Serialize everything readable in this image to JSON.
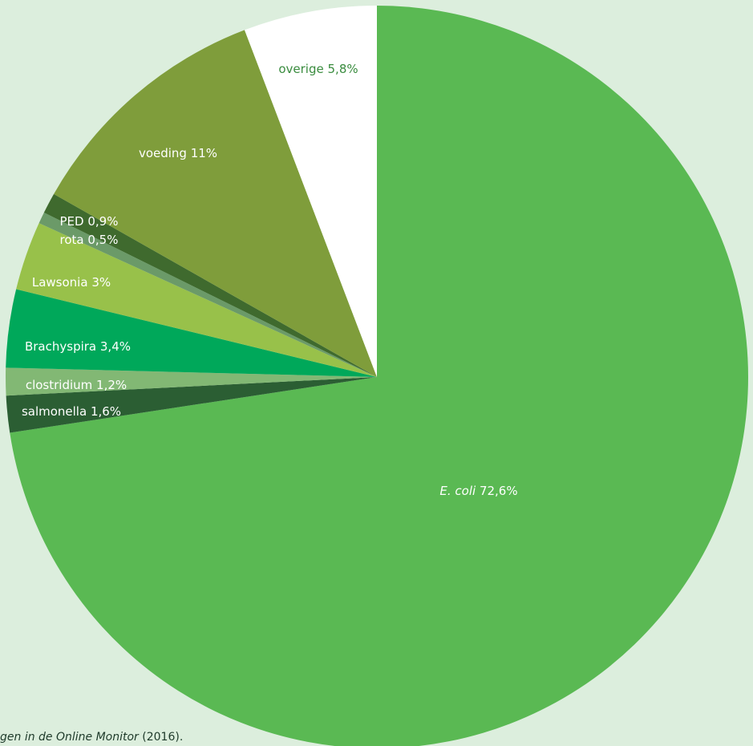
{
  "chart_data": {
    "type": "pie",
    "start": "top, clockwise",
    "slices": [
      {
        "label": "E. coli",
        "value_label": "72,6%",
        "value": 72.6,
        "color": "#5ab953",
        "text_color": "#ffffff",
        "italic": true
      },
      {
        "label": "salmonella",
        "value_label": "1,6%",
        "value": 1.6,
        "color": "#2b5e33",
        "text_color": "#ffffff",
        "italic": false
      },
      {
        "label": "clostridium",
        "value_label": "1,2%",
        "value": 1.2,
        "color": "#82b874",
        "text_color": "#ffffff",
        "italic": false
      },
      {
        "label": "Brachyspira",
        "value_label": "3,4%",
        "value": 3.4,
        "color": "#00a85a",
        "text_color": "#ffffff",
        "italic": false
      },
      {
        "label": "Lawsonia",
        "value_label": "3%",
        "value": 3.0,
        "color": "#98c14a",
        "text_color": "#ffffff",
        "italic": false
      },
      {
        "label": "rota",
        "value_label": "0,5%",
        "value": 0.5,
        "color": "#6b9a68",
        "text_color": "#ffffff",
        "italic": false
      },
      {
        "label": "PED",
        "value_label": "0,9%",
        "value": 0.9,
        "color": "#3f6a2e",
        "text_color": "#ffffff",
        "italic": false
      },
      {
        "label": "voeding",
        "value_label": "11%",
        "value": 11.0,
        "color": "#7f9d3b",
        "text_color": "#ffffff",
        "italic": false
      },
      {
        "label": "overige",
        "value_label": "5,8%",
        "value": 5.8,
        "color": "#ffffff",
        "text_color": "#3a8c3f",
        "italic": false
      }
    ]
  },
  "caption": {
    "italic_text": "gen in de Online Monitor",
    "rest_text": " (2016)."
  }
}
